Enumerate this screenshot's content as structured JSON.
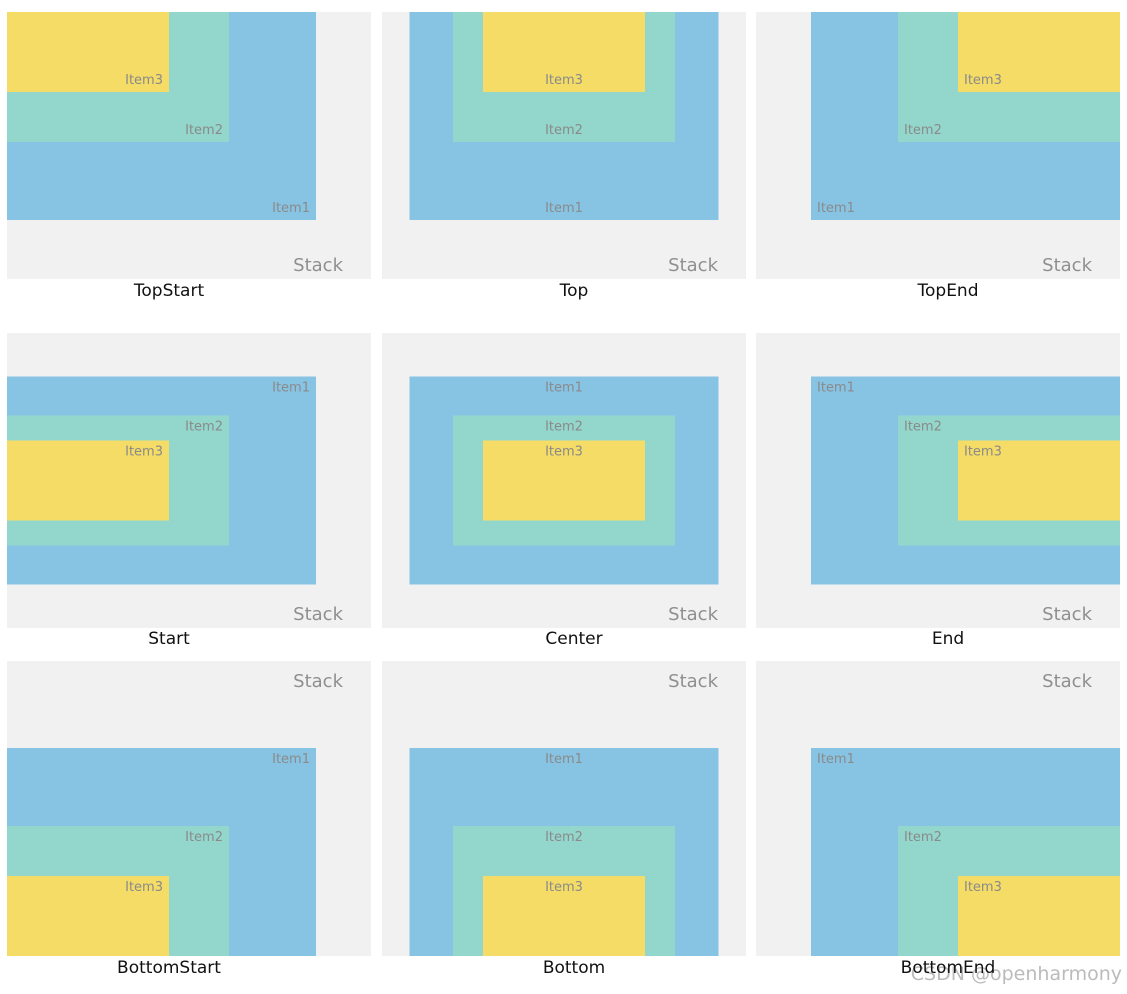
{
  "panels": [
    {
      "caption": "TopStart",
      "stack": "Stack",
      "items": [
        "Item1",
        "Item2",
        "Item3"
      ]
    },
    {
      "caption": "Top",
      "stack": "Stack",
      "items": [
        "Item1",
        "Item2",
        "Item3"
      ]
    },
    {
      "caption": "TopEnd",
      "stack": "Stack",
      "items": [
        "Item1",
        "Item2",
        "Item3"
      ]
    },
    {
      "caption": "Start",
      "stack": "Stack",
      "items": [
        "Item1",
        "Item2",
        "Item3"
      ]
    },
    {
      "caption": "Center",
      "stack": "Stack",
      "items": [
        "Item1",
        "Item2",
        "Item3"
      ]
    },
    {
      "caption": "End",
      "stack": "Stack",
      "items": [
        "Item1",
        "Item2",
        "Item3"
      ]
    },
    {
      "caption": "BottomStart",
      "stack": "Stack",
      "items": [
        "Item1",
        "Item2",
        "Item3"
      ]
    },
    {
      "caption": "Bottom",
      "stack": "Stack",
      "items": [
        "Item1",
        "Item2",
        "Item3"
      ]
    },
    {
      "caption": "BottomEnd",
      "stack": "Stack",
      "items": [
        "Item1",
        "Item2",
        "Item3"
      ]
    }
  ],
  "watermark": "CSDN @openharmony"
}
